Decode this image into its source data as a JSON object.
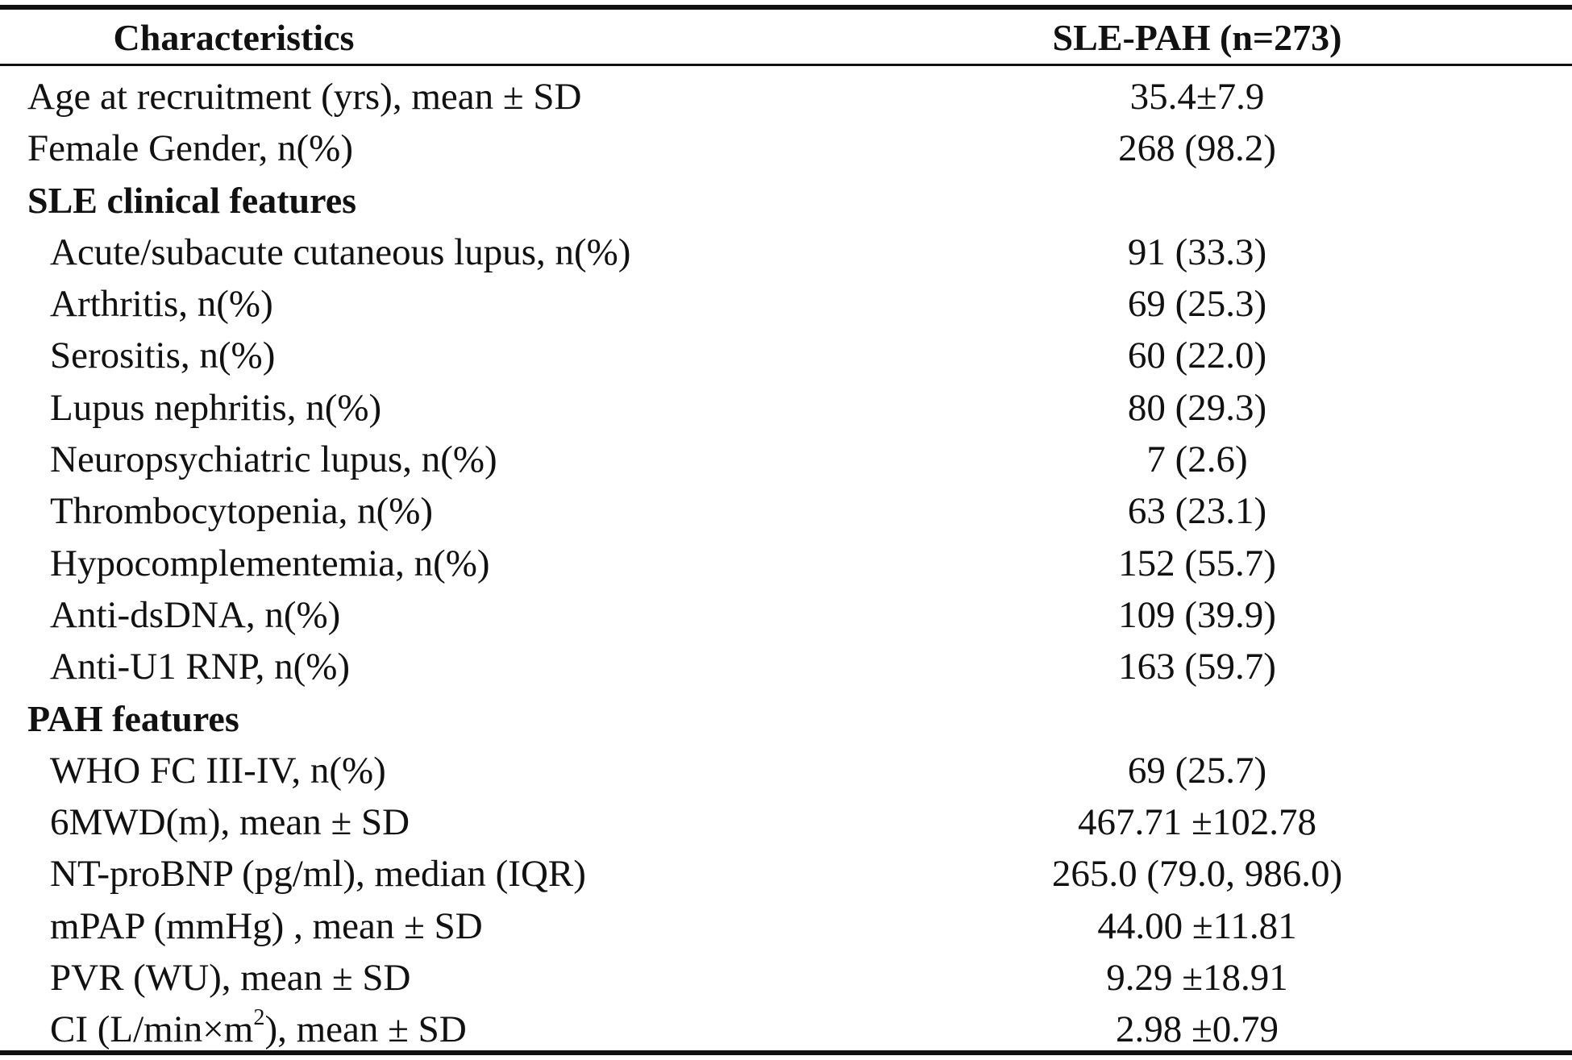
{
  "header": {
    "characteristics": "Characteristics",
    "group": "SLE-PAH (n=273)"
  },
  "rows": [
    {
      "label": "Age at recruitment (yrs), mean ± SD",
      "value": "35.4±7.9"
    },
    {
      "label": "Female Gender, n(%)",
      "value": "268 (98.2)"
    },
    {
      "label": "SLE clinical features",
      "value": ""
    },
    {
      "label": "Acute/subacute cutaneous lupus, n(%)",
      "value": "91 (33.3)"
    },
    {
      "label": "Arthritis, n(%)",
      "value": "69 (25.3)"
    },
    {
      "label": "Serositis, n(%)",
      "value": "60 (22.0)"
    },
    {
      "label": "Lupus nephritis, n(%)",
      "value": "80 (29.3)"
    },
    {
      "label": "Neuropsychiatric lupus, n(%)",
      "value": "7 (2.6)"
    },
    {
      "label": "Thrombocytopenia, n(%)",
      "value": "63 (23.1)"
    },
    {
      "label": "Hypocomplementemia, n(%)",
      "value": "152 (55.7)"
    },
    {
      "label": "Anti-dsDNA, n(%)",
      "value": "109 (39.9)"
    },
    {
      "label": "Anti-U1 RNP, n(%)",
      "value": "163 (59.7)"
    },
    {
      "label": "PAH features",
      "value": ""
    },
    {
      "label": "WHO FC III-IV, n(%)",
      "value": "69 (25.7)"
    },
    {
      "label": "6MWD(m), mean ± SD",
      "value": "467.71 ±102.78"
    },
    {
      "label": "NT-proBNP (pg/ml), median (IQR)",
      "value": "265.0 (79.0, 986.0)"
    },
    {
      "label": "mPAP (mmHg) , mean ± SD",
      "value": "44.00 ±11.81"
    },
    {
      "label": "PVR (WU), mean ± SD",
      "value": "9.29 ±18.91"
    },
    {
      "label_prefix": "CI (L/min×m",
      "label_sup": "2",
      "label_suffix": "), mean ± SD",
      "value": "2.98 ±0.79"
    }
  ]
}
